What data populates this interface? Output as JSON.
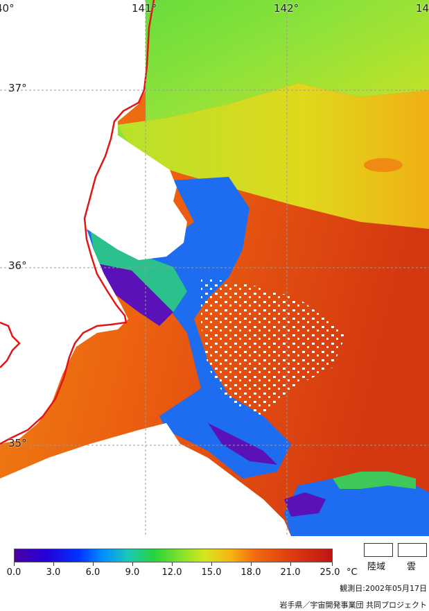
{
  "map": {
    "lon_labels": [
      "40°",
      "141°",
      "142°",
      "14"
    ],
    "lat_labels": [
      "37°",
      "36°",
      "35°"
    ],
    "land_color": "#ffffff",
    "coastline_color": "#e41414",
    "grid_color": "#9a9a9a"
  },
  "legend": {
    "ticks": [
      "0.0",
      "3.0",
      "6.0",
      "9.0",
      "12.0",
      "15.0",
      "18.0",
      "21.0",
      "25.0"
    ],
    "unit": "°C",
    "key_land": "陸域",
    "key_cloud": "雲",
    "colors": [
      "#4c00a6",
      "#0030ff",
      "#1cc8b4",
      "#7ee12c",
      "#d6e61e",
      "#f06a0f",
      "#c01414"
    ]
  },
  "footer": {
    "observation_date": "観測日:2002年05月17日",
    "credit": "岩手県／宇宙開発事業団 共同プロジェクト"
  }
}
